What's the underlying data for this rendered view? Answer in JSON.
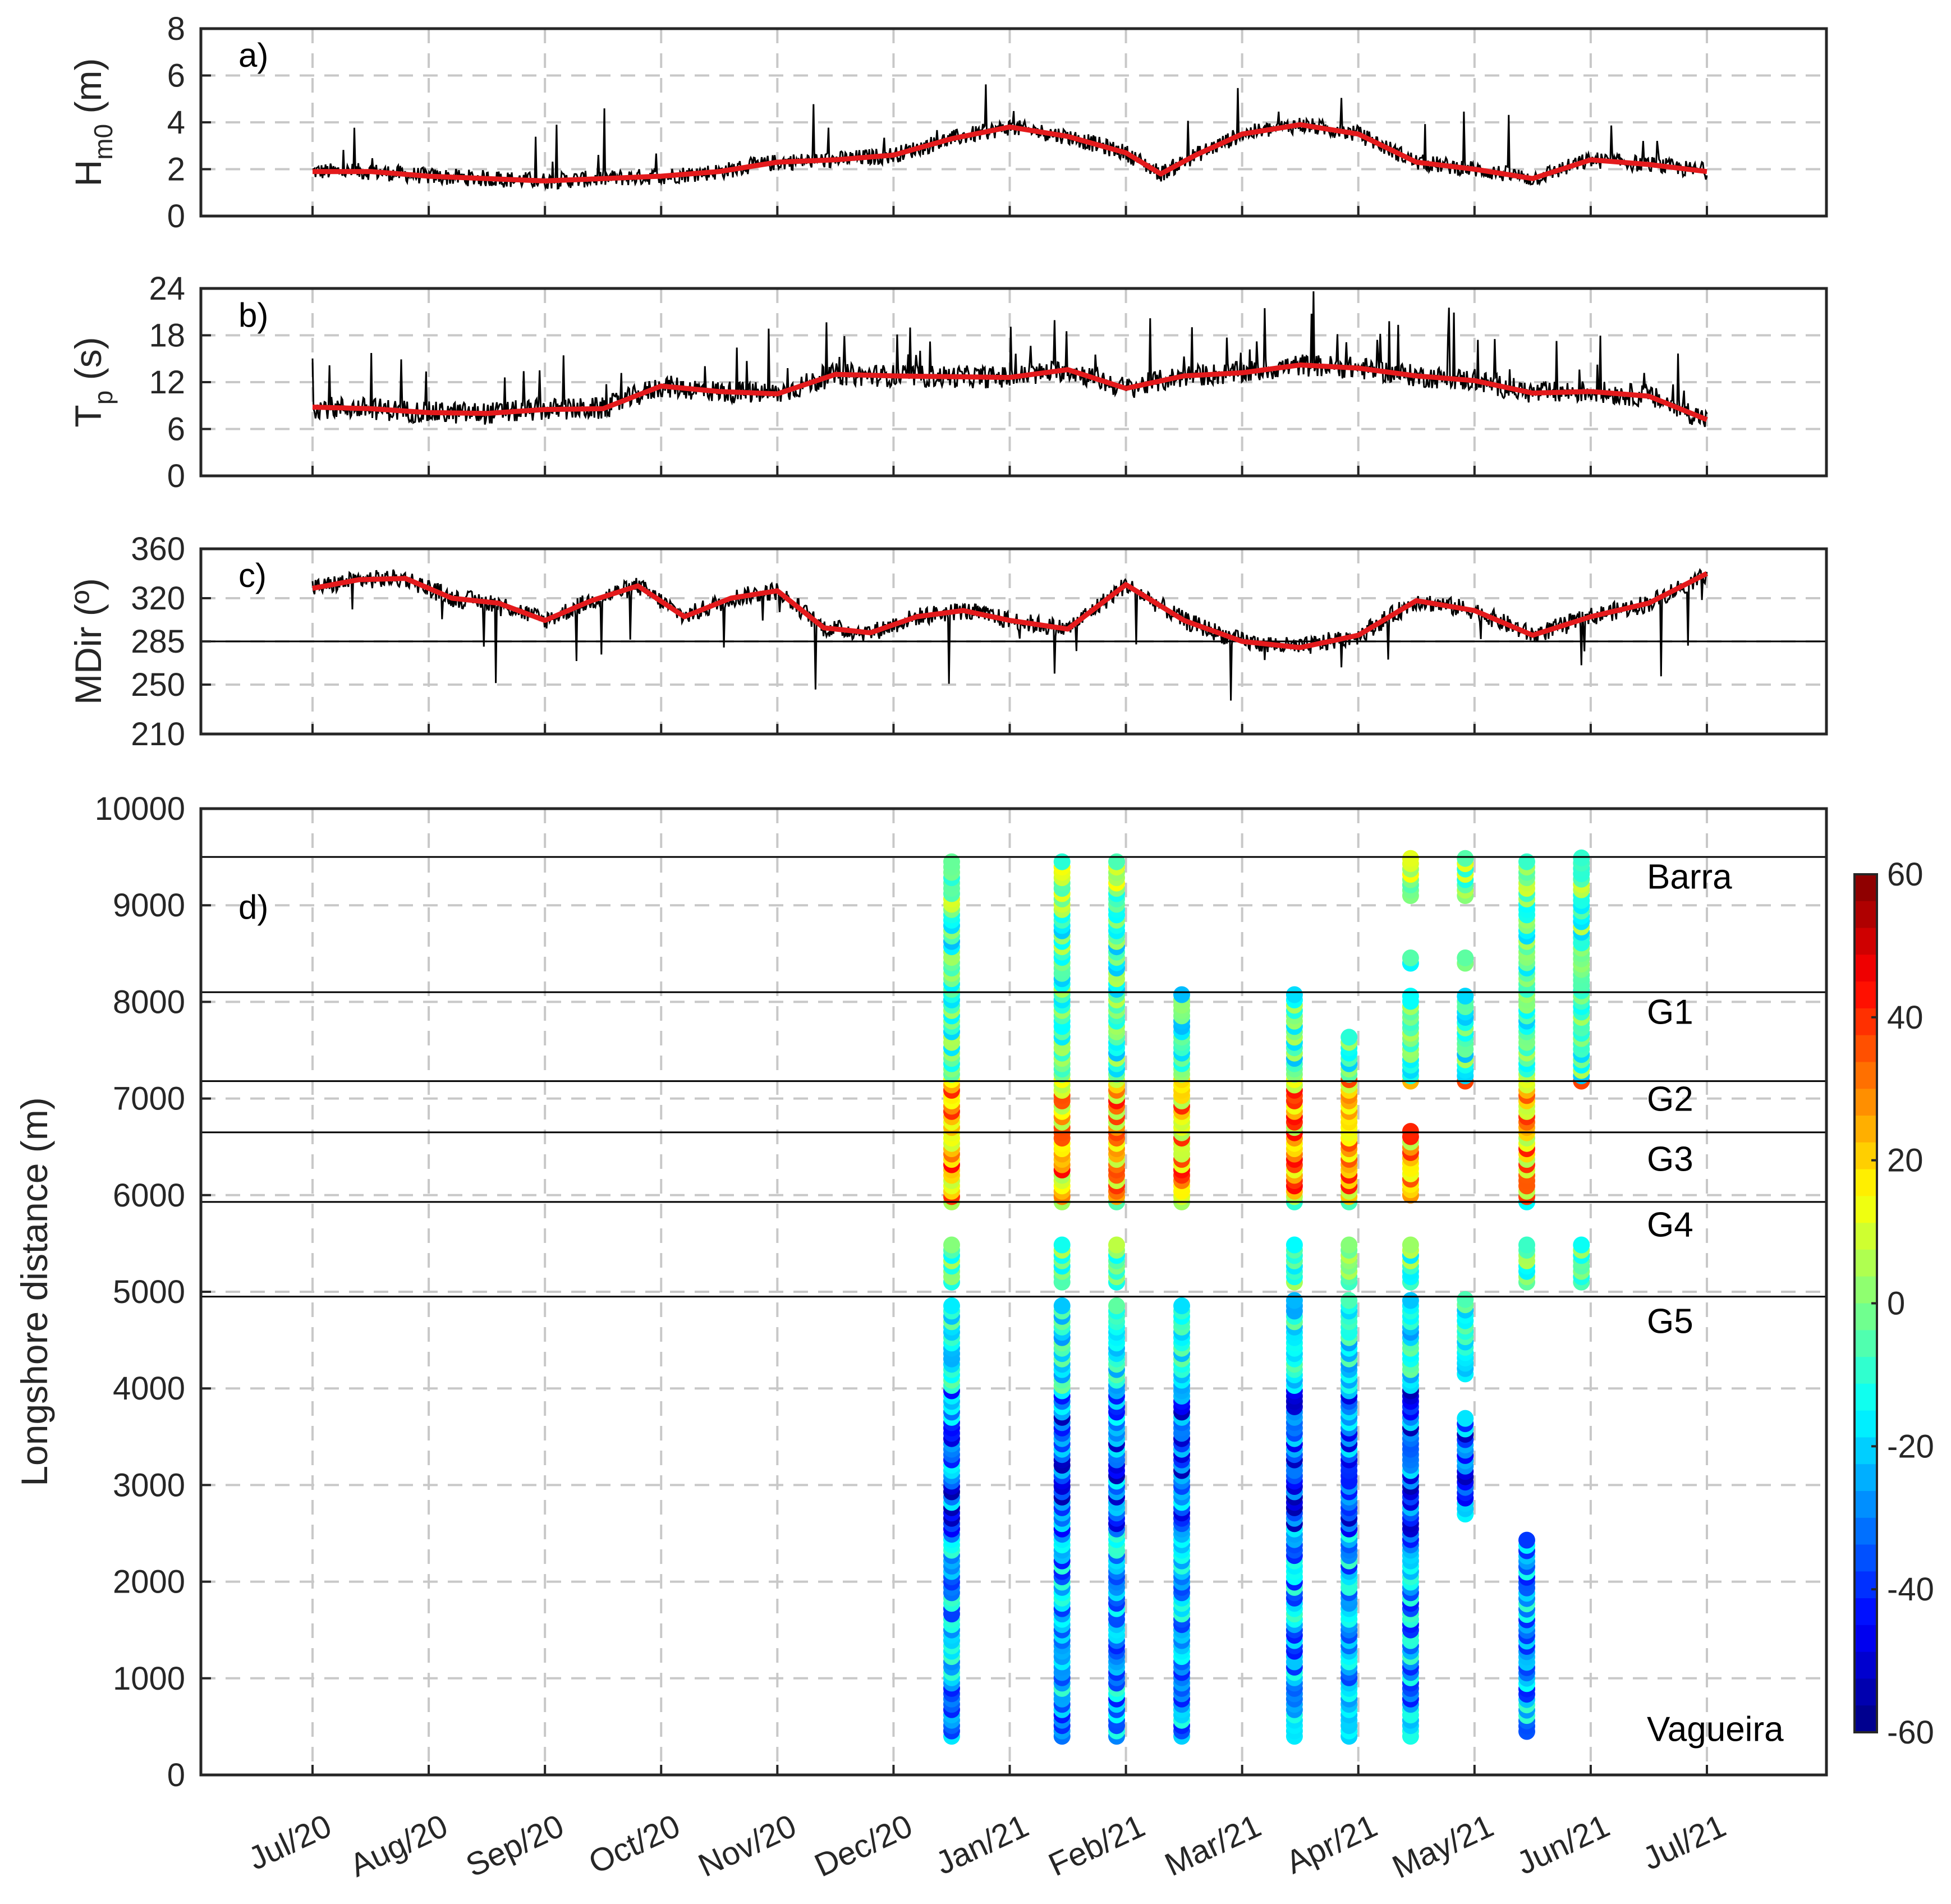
{
  "chart_data": [
    {
      "type": "line",
      "panel_label": "a)",
      "ylabel": "H",
      "ylabel_sub": "m0",
      "ylabel_unit": " (m)",
      "ylim": [
        0,
        8
      ],
      "yticks": [
        0,
        2,
        4,
        6,
        8
      ],
      "xticks": [
        "Jul/20",
        "Aug/20",
        "Sep/20",
        "Oct/20",
        "Nov/20",
        "Dec/20",
        "Jan/21",
        "Feb/21",
        "Mar/21",
        "Apr/21",
        "May/21",
        "Jun/21",
        "Jul/21"
      ],
      "series": [
        {
          "values_by_month": [
            2.0,
            1.7,
            1.5,
            1.7,
            2.4,
            3.3,
            3.7,
            2.2,
            3.7,
            2.4,
            1.7,
            2.3,
            2.0
          ]
        }
      ],
      "smooth_series": {
        "x": [
          0,
          0.5,
          1,
          1.5,
          2,
          2.5,
          3,
          3.5,
          4,
          4.5,
          5,
          5.5,
          6,
          6.5,
          7,
          7.3,
          7.6,
          8,
          8.5,
          9,
          9.5,
          10,
          10.5,
          11,
          11.5,
          12
        ],
        "y": [
          1.9,
          1.9,
          1.7,
          1.6,
          1.5,
          1.6,
          1.7,
          1.9,
          2.3,
          2.4,
          2.6,
          3.3,
          3.8,
          3.4,
          2.7,
          1.8,
          2.6,
          3.5,
          3.9,
          3.5,
          2.3,
          2.0,
          1.6,
          2.4,
          2.2,
          1.9
        ]
      },
      "grid": true
    },
    {
      "type": "line",
      "panel_label": "b)",
      "ylabel": "T",
      "ylabel_sub": "p",
      "ylabel_unit": " (s)",
      "ylim": [
        0,
        24
      ],
      "yticks": [
        0,
        6,
        12,
        18,
        24
      ],
      "smooth_series": {
        "x": [
          0,
          0.5,
          1,
          1.5,
          2,
          2.5,
          3,
          3.5,
          4,
          4.5,
          5,
          5.5,
          6,
          6.5,
          7,
          7.5,
          8,
          8.5,
          9,
          9.5,
          10,
          10.5,
          11,
          11.5,
          12
        ],
        "y": [
          8.8,
          8.6,
          8.1,
          8.0,
          8.5,
          8.6,
          11.5,
          10.8,
          10.5,
          13.0,
          12.8,
          12.7,
          12.6,
          13.6,
          11.2,
          12.8,
          13.2,
          14.2,
          13.8,
          12.8,
          12.2,
          10.6,
          10.8,
          10.2,
          7.2
        ]
      },
      "grid": true
    },
    {
      "type": "line",
      "panel_label": "c)",
      "ylabel": "MDir (º)",
      "ylim": [
        210,
        360
      ],
      "yticks": [
        210,
        250,
        285,
        320,
        360
      ],
      "reference_line": 285,
      "smooth_series": {
        "x": [
          0,
          0.4,
          0.8,
          1.2,
          1.6,
          2.0,
          2.4,
          2.8,
          3.2,
          3.6,
          4.0,
          4.4,
          4.8,
          5.2,
          5.6,
          6.0,
          6.5,
          7.0,
          7.5,
          8.0,
          8.5,
          9.0,
          9.5,
          10.0,
          10.5,
          11.0,
          11.5,
          12.0
        ],
        "y": [
          328,
          335,
          336,
          320,
          316,
          302,
          318,
          330,
          305,
          320,
          326,
          296,
          292,
          305,
          310,
          302,
          295,
          331,
          302,
          285,
          280,
          290,
          318,
          310,
          290,
          305,
          316,
          340
        ]
      },
      "grid": true
    },
    {
      "type": "scatter",
      "panel_label": "d)",
      "ylabel": "Longshore distance (m)",
      "ylim": [
        0,
        10000
      ],
      "yticks": [
        0,
        1000,
        2000,
        3000,
        4000,
        5000,
        6000,
        7000,
        8000,
        9000,
        10000
      ],
      "xticks": [
        "Jul/20",
        "Aug/20",
        "Sep/20",
        "Oct/20",
        "Nov/20",
        "Dec/20",
        "Jan/21",
        "Feb/21",
        "Mar/21",
        "Apr/21",
        "May/21",
        "Jun/21",
        "Jul/21"
      ],
      "segment_boundaries": [
        9500,
        8100,
        7180,
        6650,
        5930,
        4950
      ],
      "segment_labels": [
        {
          "text": "Barra",
          "y": 9300
        },
        {
          "text": "G1",
          "y": 7900
        },
        {
          "text": "G2",
          "y": 7000
        },
        {
          "text": "G3",
          "y": 6380
        },
        {
          "text": "G4",
          "y": 5700
        },
        {
          "text": "G5",
          "y": 4700
        },
        {
          "text": "Vagueira",
          "y": 480
        }
      ],
      "survey_dates_month": [
        5.5,
        6.45,
        6.92,
        7.48,
        8.45,
        8.92,
        9.45,
        9.92,
        10.45,
        10.92
      ],
      "colorbar": {
        "ticks": [
          60,
          40,
          20,
          0,
          -20,
          -40,
          -60
        ],
        "cmap": "jet",
        "range": [
          -60,
          60
        ]
      },
      "grid": true
    }
  ]
}
